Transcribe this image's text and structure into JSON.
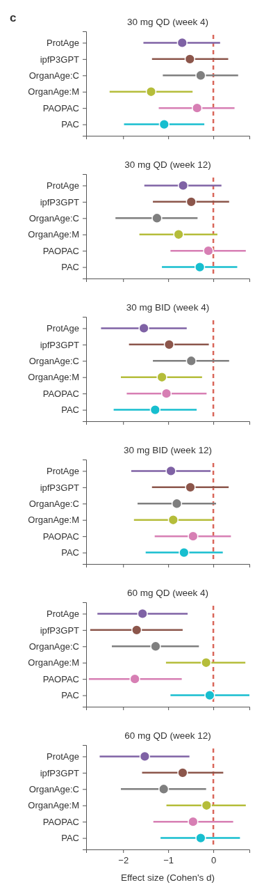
{
  "chart_data": [
    {
      "type": "scatter",
      "orientation": "horizontal",
      "title": "30 mg QD (week 4)",
      "annotations": [
        "c"
      ],
      "tick_labels": "y",
      "marker": "circle",
      "categories": [
        "ProtAge",
        "ipfP3GPT",
        "OrganAge:C",
        "OrganAge:M",
        "PAOPAC",
        "PAC"
      ],
      "values": [
        -0.69,
        -0.52,
        -0.28,
        -1.38,
        -0.36,
        -1.09
      ],
      "errors": [
        [
          -1.55,
          0.15
        ],
        [
          -1.36,
          0.33
        ],
        [
          -1.12,
          0.55
        ],
        [
          -2.3,
          -0.46
        ],
        [
          -1.21,
          0.47
        ],
        [
          -1.98,
          -0.2
        ]
      ],
      "colors": [
        "#7f62a5",
        "#8c564b",
        "#7f7f7f",
        "#b5bd3a",
        "#d77fb4",
        "#17becf"
      ],
      "xlim": [
        -2.82,
        0.8
      ],
      "xticks": [
        {
          "value": -2,
          "label": null
        },
        {
          "value": -1,
          "label": null
        },
        {
          "value": 0,
          "label": null
        }
      ],
      "ref_lines": [
        {
          "axis": "x",
          "value": 0,
          "color": "#d9665a",
          "line_style": "dashed"
        }
      ]
    },
    {
      "type": "scatter",
      "orientation": "horizontal",
      "title": "30 mg QD (week 12)",
      "tick_labels": "y",
      "marker": "circle",
      "categories": [
        "ProtAge",
        "ipfP3GPT",
        "OrganAge:C",
        "OrganAge:M",
        "PAOPAC",
        "PAC"
      ],
      "values": [
        -0.67,
        -0.49,
        -1.25,
        -0.77,
        -0.11,
        -0.3
      ],
      "errors": [
        [
          -1.53,
          0.18
        ],
        [
          -1.34,
          0.35
        ],
        [
          -2.17,
          -0.35
        ],
        [
          -1.64,
          0.09
        ],
        [
          -0.95,
          0.72
        ],
        [
          -1.14,
          0.53
        ]
      ],
      "colors": [
        "#7f62a5",
        "#8c564b",
        "#7f7f7f",
        "#b5bd3a",
        "#d77fb4",
        "#17becf"
      ],
      "xlim": [
        -2.82,
        0.8
      ],
      "xticks": [
        {
          "value": -2,
          "label": null
        },
        {
          "value": -1,
          "label": null
        },
        {
          "value": 0,
          "label": null
        }
      ],
      "ref_lines": [
        {
          "axis": "x",
          "value": 0,
          "color": "#d9665a",
          "line_style": "dashed"
        }
      ]
    },
    {
      "type": "scatter",
      "orientation": "horizontal",
      "title": "30 mg BID (week 4)",
      "tick_labels": "y",
      "marker": "circle",
      "categories": [
        "ProtAge",
        "ipfP3GPT",
        "OrganAge:C",
        "OrganAge:M",
        "PAOPAC",
        "PAC"
      ],
      "values": [
        -1.54,
        -0.98,
        -0.49,
        -1.14,
        -1.04,
        -1.29
      ],
      "errors": [
        [
          -2.49,
          -0.59
        ],
        [
          -1.87,
          -0.1
        ],
        [
          -1.34,
          0.35
        ],
        [
          -2.05,
          -0.25
        ],
        [
          -1.92,
          -0.15
        ],
        [
          -2.21,
          -0.37
        ]
      ],
      "colors": [
        "#7f62a5",
        "#8c564b",
        "#7f7f7f",
        "#b5bd3a",
        "#d77fb4",
        "#17becf"
      ],
      "xlim": [
        -2.82,
        0.8
      ],
      "xticks": [
        {
          "value": -2,
          "label": null
        },
        {
          "value": -1,
          "label": null
        },
        {
          "value": 0,
          "label": null
        }
      ],
      "ref_lines": [
        {
          "axis": "x",
          "value": 0,
          "color": "#d9665a",
          "line_style": "dashed"
        }
      ]
    },
    {
      "type": "scatter",
      "orientation": "horizontal",
      "title": "30 mg BID (week 12)",
      "tick_labels": "y",
      "marker": "circle",
      "categories": [
        "ProtAge",
        "ipfP3GPT",
        "OrganAge:C",
        "OrganAge:M",
        "PAOPAC",
        "PAC"
      ],
      "values": [
        -0.94,
        -0.51,
        -0.81,
        -0.89,
        -0.45,
        -0.65
      ],
      "errors": [
        [
          -1.82,
          -0.06
        ],
        [
          -1.36,
          0.34
        ],
        [
          -1.68,
          0.06
        ],
        [
          -1.76,
          -0.02
        ],
        [
          -1.3,
          0.39
        ],
        [
          -1.5,
          0.21
        ]
      ],
      "colors": [
        "#7f62a5",
        "#8c564b",
        "#7f7f7f",
        "#b5bd3a",
        "#d77fb4",
        "#17becf"
      ],
      "xlim": [
        -2.82,
        0.8
      ],
      "xticks": [
        {
          "value": -2,
          "label": null
        },
        {
          "value": -1,
          "label": null
        },
        {
          "value": 0,
          "label": null
        }
      ],
      "ref_lines": [
        {
          "axis": "x",
          "value": 0,
          "color": "#d9665a",
          "line_style": "dashed"
        }
      ]
    },
    {
      "type": "scatter",
      "orientation": "horizontal",
      "title": "60 mg QD (week 4)",
      "tick_labels": "y",
      "marker": "circle",
      "categories": [
        "ProtAge",
        "ipfP3GPT",
        "OrganAge:C",
        "OrganAge:M",
        "PAOPAC",
        "PAC"
      ],
      "values": [
        -1.57,
        -1.7,
        -1.28,
        -0.16,
        -1.74,
        -0.08
      ],
      "errors": [
        [
          -2.57,
          -0.57
        ],
        [
          -2.73,
          -0.68
        ],
        [
          -2.25,
          -0.32
        ],
        [
          -1.05,
          0.71
        ],
        [
          -2.76,
          -0.7
        ],
        [
          -0.95,
          0.8
        ]
      ],
      "colors": [
        "#7f62a5",
        "#8c564b",
        "#7f7f7f",
        "#b5bd3a",
        "#d77fb4",
        "#17becf"
      ],
      "xlim": [
        -2.82,
        0.8
      ],
      "xticks": [
        {
          "value": -2,
          "label": null
        },
        {
          "value": -1,
          "label": null
        },
        {
          "value": 0,
          "label": null
        }
      ],
      "ref_lines": [
        {
          "axis": "x",
          "value": 0,
          "color": "#d9665a",
          "line_style": "dashed"
        }
      ]
    },
    {
      "type": "scatter",
      "orientation": "horizontal",
      "title": "60 mg QD (week 12)",
      "xlabel": "Effect size (Cohen's d)",
      "marker": "circle",
      "categories": [
        "ProtAge",
        "ipfP3GPT",
        "OrganAge:C",
        "OrganAge:M",
        "PAOPAC",
        "PAC"
      ],
      "values": [
        -1.52,
        -0.68,
        -1.1,
        -0.15,
        -0.45,
        -0.28
      ],
      "errors": [
        [
          -2.52,
          -0.53
        ],
        [
          -1.58,
          0.22
        ],
        [
          -2.05,
          -0.16
        ],
        [
          -1.04,
          0.72
        ],
        [
          -1.33,
          0.44
        ],
        [
          -1.17,
          0.59
        ]
      ],
      "colors": [
        "#7f62a5",
        "#8c564b",
        "#7f7f7f",
        "#b5bd3a",
        "#d77fb4",
        "#17becf"
      ],
      "xlim": [
        -2.82,
        0.8
      ],
      "xticks": [
        {
          "value": -2,
          "label": "−2"
        },
        {
          "value": -1,
          "label": "−1"
        },
        0
      ],
      "ref_lines": [
        {
          "axis": "x",
          "value": 0,
          "color": "#d9665a",
          "line_style": "dashed"
        }
      ]
    }
  ]
}
